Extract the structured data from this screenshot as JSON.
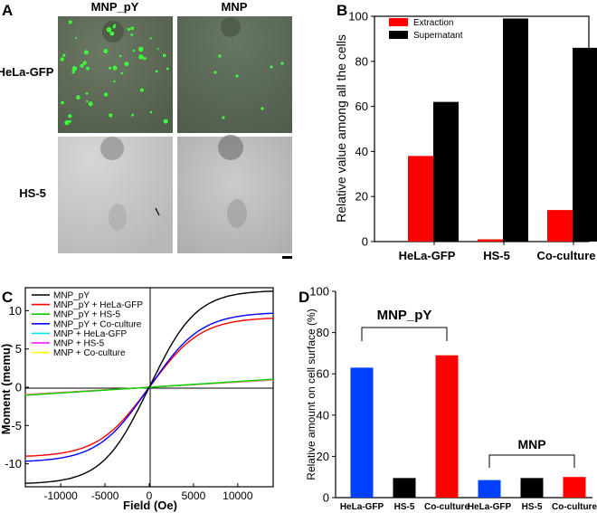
{
  "panel_a": {
    "label": "A",
    "col_headers": [
      "MNP_pY",
      "MNP"
    ],
    "row_labels": [
      "HeLa-GFP",
      "HS-5"
    ],
    "images": [
      {
        "row": "HeLa-GFP",
        "col": "MNP_pY",
        "tone": "#5d6b55",
        "dots": "many"
      },
      {
        "row": "HeLa-GFP",
        "col": "MNP",
        "tone": "#5b6a55",
        "dots": "few"
      },
      {
        "row": "HS-5",
        "col": "MNP_pY",
        "tone": "#c9c9c9",
        "dots": "none"
      },
      {
        "row": "HS-5",
        "col": "MNP",
        "tone": "#bdbdbd",
        "dots": "none"
      }
    ]
  },
  "chart_data": [
    {
      "panel": "B",
      "type": "bar",
      "categories": [
        "HeLa-GFP",
        "HS-5",
        "Co-culture"
      ],
      "series": [
        {
          "name": "Extraction",
          "color": "#ff0000",
          "values": [
            38,
            1,
            14
          ]
        },
        {
          "name": "Supernatant",
          "color": "#000000",
          "values": [
            62,
            99,
            86
          ]
        }
      ],
      "ylabel": "Relative value among all the cells",
      "ylim": [
        0,
        100
      ],
      "yticks": [
        0,
        20,
        40,
        60,
        80,
        100
      ],
      "legend": "top-left"
    },
    {
      "panel": "C",
      "type": "line",
      "xlabel": "Field (Oe)",
      "ylabel": "Moment (memu)",
      "xlim": [
        -14000,
        14000
      ],
      "ylim": [
        -13,
        13
      ],
      "xticks": [
        -10000,
        -5000,
        0,
        5000,
        10000
      ],
      "yticks": [
        -10,
        -5,
        0,
        5,
        10
      ],
      "legend": "top-left",
      "series": [
        {
          "name": "MNP_pY",
          "color": "#000000",
          "ms": 11.5,
          "k": 5000
        },
        {
          "name": "MNP_pY + HeLa-GFP",
          "color": "#ff0000",
          "ms": 8.3,
          "k": 5500
        },
        {
          "name": "MNP_pY + HS-5",
          "color": "#00cc00",
          "ms": 1.05,
          "k": 0
        },
        {
          "name": "MNP_pY + Co-culture",
          "color": "#0000ff",
          "ms": 8.9,
          "k": 5500
        },
        {
          "name": "MNP + HeLa-GFP",
          "color": "#00e5ee",
          "ms": 1.0,
          "k": 0
        },
        {
          "name": "MNP + HS-5",
          "color": "#ff00ff",
          "ms": 0.95,
          "k": 0
        },
        {
          "name": "MNP + Co-culture",
          "color": "#ffff00",
          "ms": 1.0,
          "k": 0
        }
      ]
    },
    {
      "panel": "D",
      "type": "bar",
      "categories": [
        "HeLa-GFP",
        "HS-5",
        "Co-culture",
        "HeLa-GFP",
        "HS-5",
        "Co-culture"
      ],
      "colors": [
        "#0040ff",
        "#000000",
        "#ff0000",
        "#0040ff",
        "#000000",
        "#ff0000"
      ],
      "values": [
        63,
        9.5,
        69,
        8.5,
        9.5,
        10
      ],
      "groups": [
        "MNP_pY",
        "MNP"
      ],
      "ylabel": "Relative amount on cell surface (%)",
      "ylim": [
        0,
        100
      ],
      "yticks": [
        0,
        20,
        40,
        60,
        80,
        100
      ]
    }
  ]
}
